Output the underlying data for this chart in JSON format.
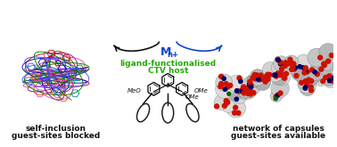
{
  "bg_color": "#ffffff",
  "left_label_line1": "self-inclusion",
  "left_label_line2": "guest-sites blocked",
  "right_label_line1": "network of capsules",
  "right_label_line2": "guest-sites available",
  "center_green_line1": "ligand-functionalised",
  "center_green_line2": "CTV host",
  "metal_label": "M",
  "metal_superscript": "n+",
  "green_color": "#22aa00",
  "blue_color": "#1144cc",
  "dark_arrow_color": "#111111",
  "left_wire_colors": [
    "#cc0000",
    "#0000bb",
    "#008888",
    "#cc6600",
    "#880088",
    "#dd44aa",
    "#007700",
    "#4444ff"
  ],
  "figsize": [
    3.78,
    1.65
  ],
  "dpi": 100
}
